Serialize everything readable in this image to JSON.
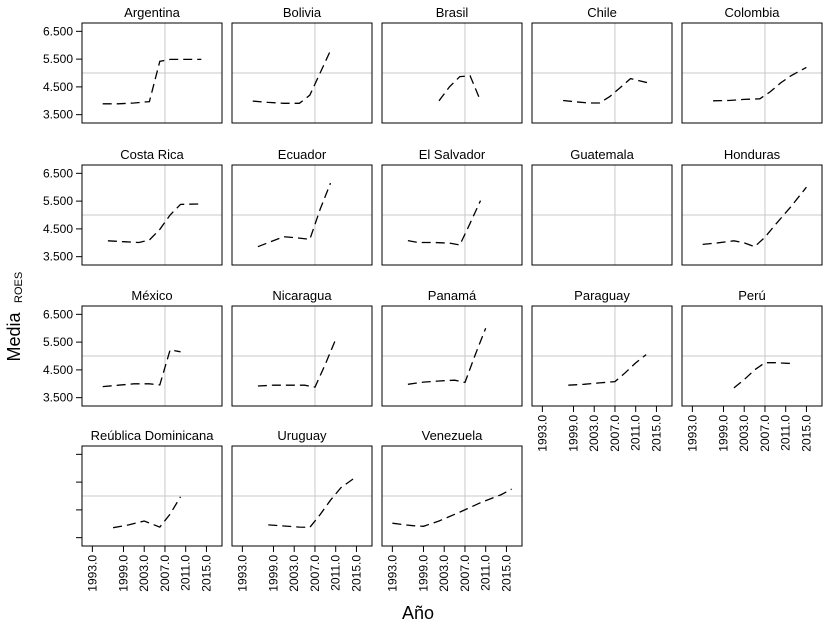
{
  "chart_data": {
    "type": "line",
    "xlabel": "Año",
    "ylabel": "Media",
    "ylabel_sub": "ROES",
    "x_ticks": [
      1993.0,
      1999.0,
      2003.0,
      2007.0,
      2011.0,
      2015.0
    ],
    "x_tick_labels": [
      "1993.0",
      "1999.0",
      "2003.0",
      "2007.0",
      "2011.0",
      "2015.0"
    ],
    "y_ticks": [
      3500,
      4500,
      5500,
      6500
    ],
    "y_tick_labels": [
      "3.500",
      "4.500",
      "5.500",
      "6.500"
    ],
    "xlim": [
      1991,
      2018
    ],
    "ylim": [
      3200,
      6800
    ],
    "grid": "reference lines at x=2007 and y=5000",
    "line_style": "dashed",
    "panels": [
      {
        "name": "Argentina",
        "x": [
          1995,
          1998,
          2001,
          2004,
          2006,
          2008,
          2010,
          2014
        ],
        "y": [
          3890,
          3890,
          3920,
          3970,
          5420,
          5490,
          5490,
          5490
        ]
      },
      {
        "name": "Bolivia",
        "x": [
          1995,
          1998,
          2001,
          2004,
          2006,
          2008,
          2010
        ],
        "y": [
          3990,
          3940,
          3910,
          3910,
          4200,
          5000,
          5810
        ]
      },
      {
        "name": "Brasil",
        "x": [
          2002,
          2004,
          2006,
          2008,
          2010
        ],
        "y": [
          4000,
          4500,
          4870,
          4900,
          4000
        ]
      },
      {
        "name": "Chile",
        "x": [
          1997,
          1999,
          2002,
          2004,
          2006,
          2008,
          2010,
          2014
        ],
        "y": [
          4010,
          3970,
          3920,
          3920,
          4150,
          4470,
          4800,
          4620
        ]
      },
      {
        "name": "Colombia",
        "x": [
          1997,
          2000,
          2003,
          2006,
          2008,
          2010,
          2012,
          2015
        ],
        "y": [
          4000,
          4010,
          4050,
          4070,
          4320,
          4640,
          4900,
          5200
        ]
      },
      {
        "name": "Costa Rica",
        "x": [
          1996,
          1999,
          2002,
          2004,
          2006,
          2008,
          2010,
          2014
        ],
        "y": [
          4070,
          4040,
          4010,
          4100,
          4480,
          5000,
          5380,
          5400
        ]
      },
      {
        "name": "Ecuador",
        "x": [
          1996,
          1999,
          2001,
          2004,
          2006,
          2008,
          2010
        ],
        "y": [
          3860,
          4080,
          4220,
          4170,
          4120,
          5200,
          6150
        ]
      },
      {
        "name": "El Salvador",
        "x": [
          1996,
          1998,
          2001,
          2004,
          2006,
          2008,
          2010
        ],
        "y": [
          4080,
          4010,
          4010,
          3990,
          3920,
          4700,
          5520
        ]
      },
      {
        "name": "Guatemala",
        "x": [],
        "y": []
      },
      {
        "name": "Honduras",
        "x": [
          1995,
          1998,
          2001,
          2003,
          2005,
          2007,
          2009,
          2012,
          2015
        ],
        "y": [
          3940,
          4000,
          4070,
          4000,
          3860,
          4200,
          4650,
          5300,
          6000
        ]
      },
      {
        "name": "México",
        "x": [
          1995,
          1998,
          2001,
          2004,
          2006,
          2008,
          2010
        ],
        "y": [
          3900,
          3950,
          4000,
          4000,
          3960,
          5220,
          5150
        ]
      },
      {
        "name": "Nicaragua",
        "x": [
          1996,
          1999,
          2002,
          2005,
          2007,
          2009,
          2011
        ],
        "y": [
          3920,
          3950,
          3950,
          3950,
          3880,
          4700,
          5600
        ]
      },
      {
        "name": "Panamá",
        "x": [
          1996,
          1999,
          2002,
          2005,
          2007,
          2009,
          2011
        ],
        "y": [
          3980,
          4060,
          4100,
          4130,
          4050,
          5050,
          6000
        ]
      },
      {
        "name": "Paraguay",
        "x": [
          1998,
          2001,
          2004,
          2007,
          2009,
          2011,
          2013
        ],
        "y": [
          3950,
          3980,
          4030,
          4080,
          4400,
          4750,
          5050
        ]
      },
      {
        "name": "Perú",
        "x": [
          2001,
          2003,
          2005,
          2007,
          2009,
          2012
        ],
        "y": [
          3850,
          4150,
          4500,
          4760,
          4760,
          4730
        ]
      },
      {
        "name": "Reública Dominicana",
        "x": [
          1997,
          2000,
          2003,
          2006,
          2008,
          2010
        ],
        "y": [
          3860,
          3960,
          4100,
          3880,
          4350,
          4970
        ]
      },
      {
        "name": "Uruguay",
        "x": [
          1998,
          2001,
          2004,
          2006,
          2008,
          2010,
          2012,
          2015
        ],
        "y": [
          3960,
          3920,
          3880,
          3870,
          4330,
          4850,
          5300,
          5700
        ]
      },
      {
        "name": "Venezuela",
        "x": [
          1993,
          1995,
          1997,
          1999,
          2002,
          2006,
          2010,
          2014,
          2016
        ],
        "y": [
          4020,
          3970,
          3930,
          3910,
          4100,
          4420,
          4760,
          5050,
          5250
        ]
      }
    ]
  }
}
